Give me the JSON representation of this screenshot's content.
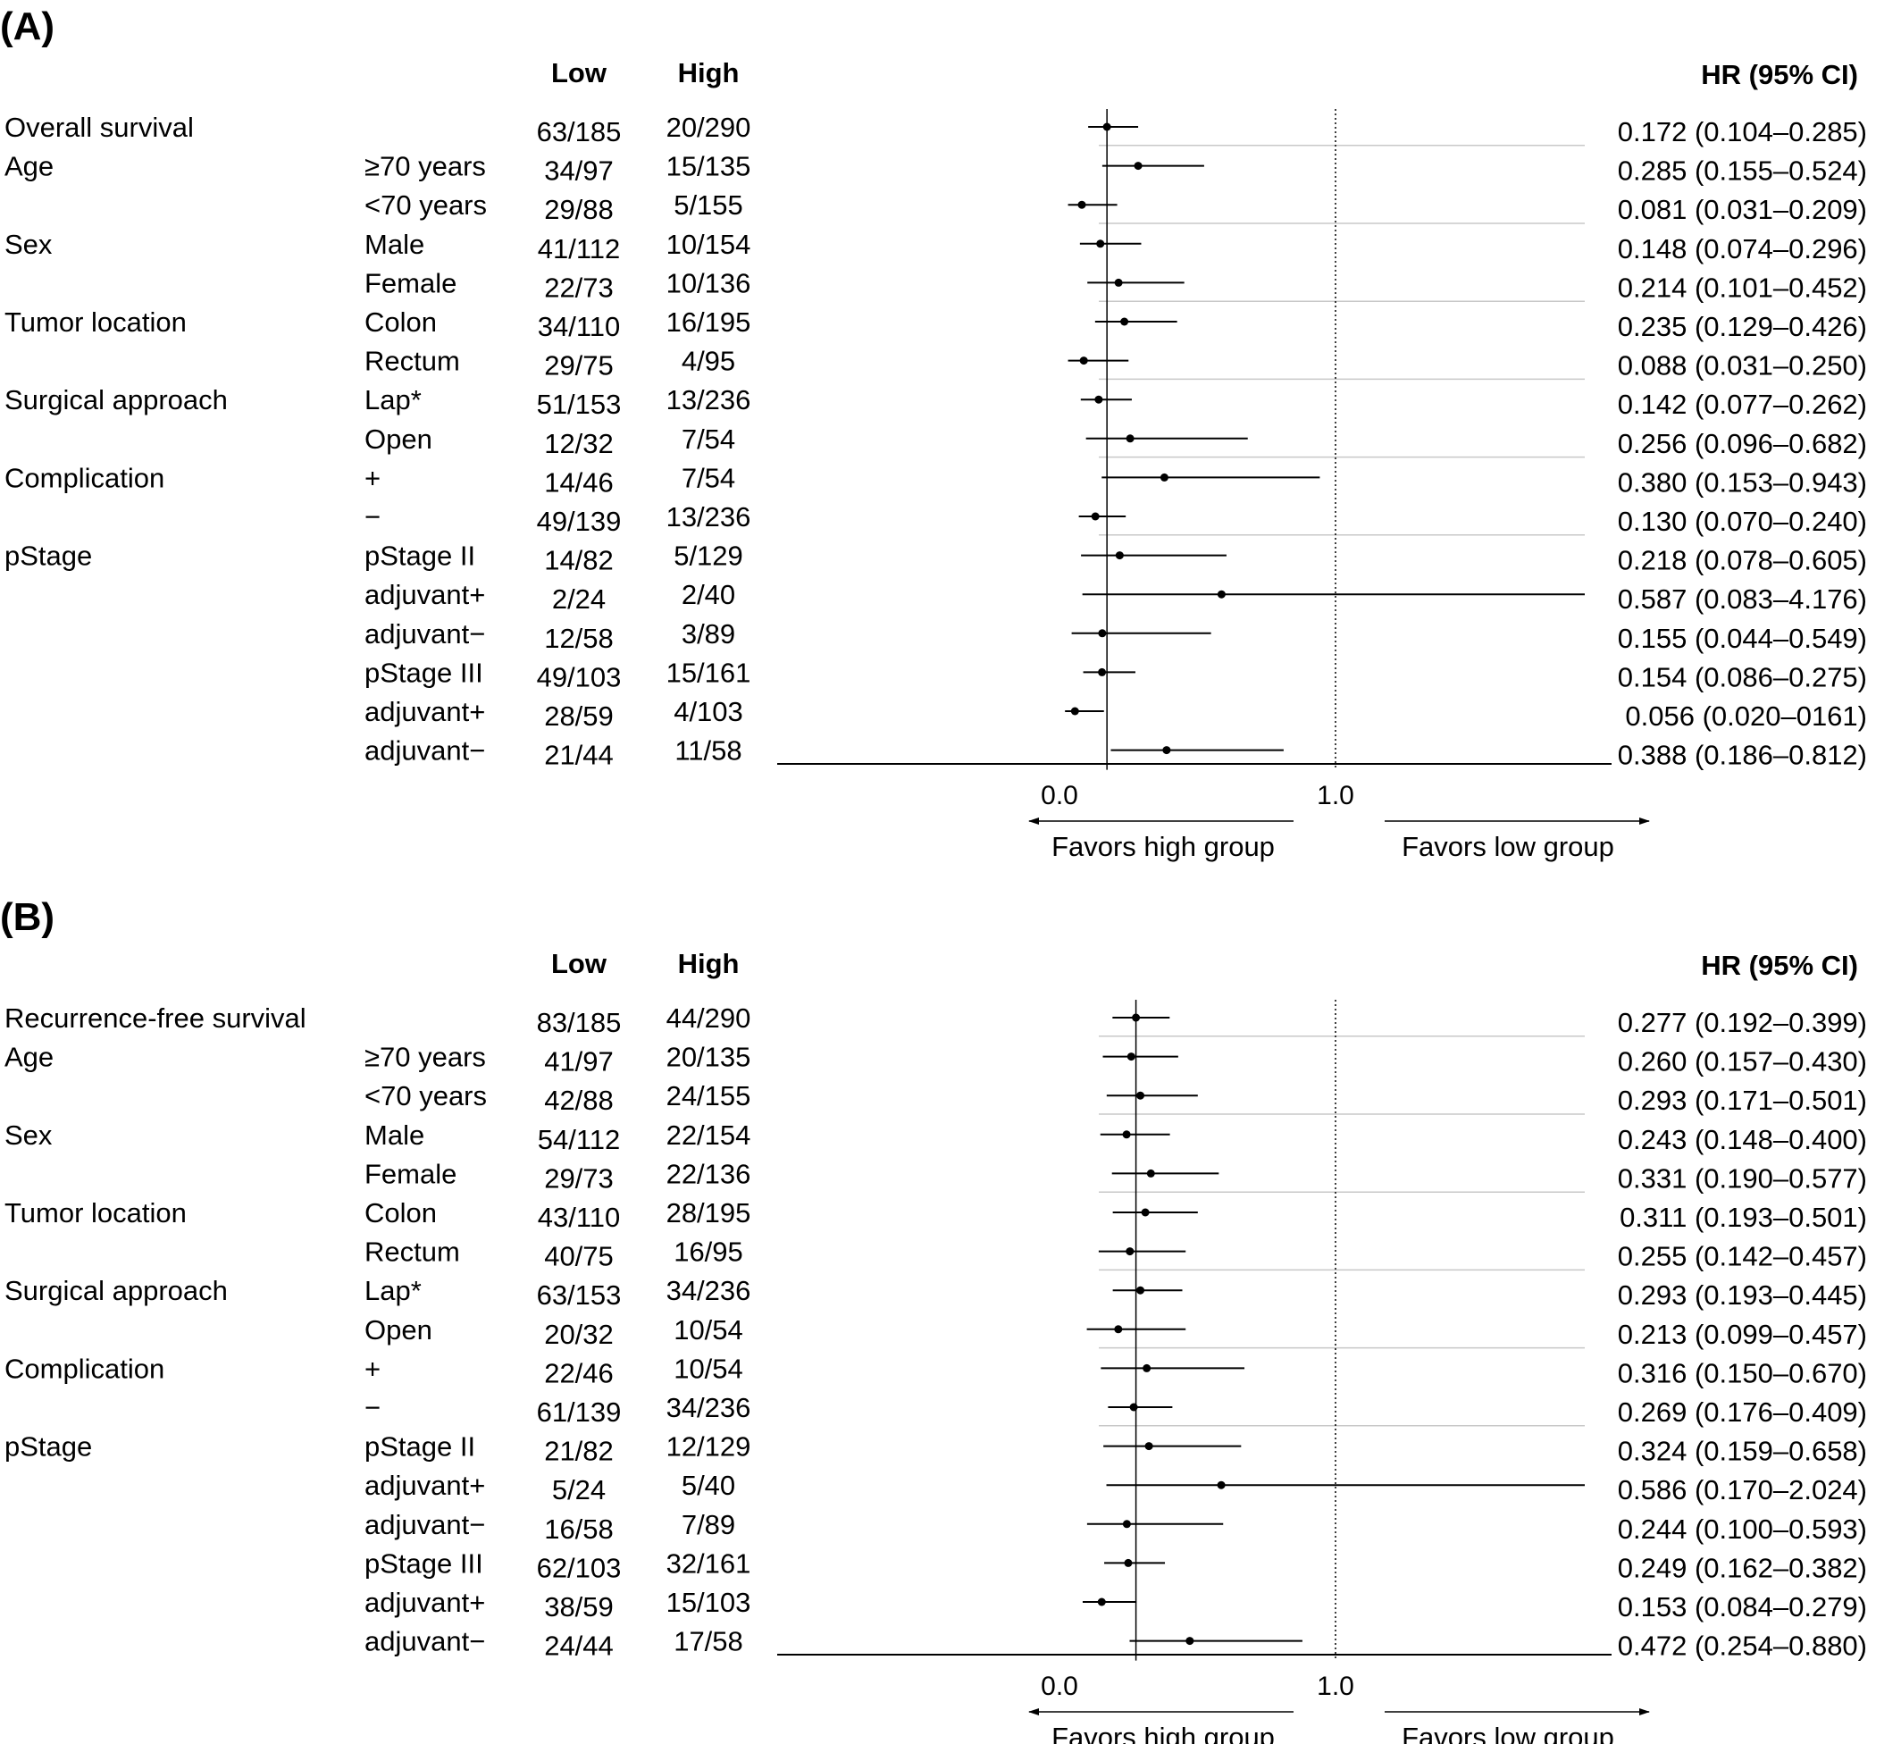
{
  "chart_data": [
    {
      "panel_label": "(A)",
      "type": "forest",
      "headers": {
        "low": "Low",
        "high": "High",
        "hr": "HR (95% CI)"
      },
      "overall": {
        "label": "Overall survival",
        "low": "63/185",
        "high": "20/290",
        "hr_text": "0.172 (0.104–0.285)",
        "hr": 0.172,
        "ci": [
          0.104,
          0.285
        ]
      },
      "groups": [
        {
          "label": "Age",
          "rows": [
            {
              "label": "≥70 years",
              "low": "34/97",
              "high": "15/135",
              "hr_text": "0.285 (0.155–0.524)",
              "hr": 0.285,
              "ci": [
                0.155,
                0.524
              ]
            },
            {
              "label": "<70 years",
              "low": "29/88",
              "high": "5/155",
              "hr_text": "0.081 (0.031–0.209)",
              "hr": 0.081,
              "ci": [
                0.031,
                0.209
              ]
            }
          ]
        },
        {
          "label": "Sex",
          "rows": [
            {
              "label": "Male",
              "low": "41/112",
              "high": "10/154",
              "hr_text": "0.148 (0.074–0.296)",
              "hr": 0.148,
              "ci": [
                0.074,
                0.296
              ]
            },
            {
              "label": "Female",
              "low": "22/73",
              "high": "10/136",
              "hr_text": "0.214 (0.101–0.452)",
              "hr": 0.214,
              "ci": [
                0.101,
                0.452
              ]
            }
          ]
        },
        {
          "label": "Tumor location",
          "rows": [
            {
              "label": "Colon",
              "low": "34/110",
              "high": "16/195",
              "hr_text": "0.235 (0.129–0.426)",
              "hr": 0.235,
              "ci": [
                0.129,
                0.426
              ]
            },
            {
              "label": "Rectum",
              "low": "29/75",
              "high": "4/95",
              "hr_text": "0.088 (0.031–0.250)",
              "hr": 0.088,
              "ci": [
                0.031,
                0.25
              ]
            }
          ]
        },
        {
          "label": "Surgical approach",
          "rows": [
            {
              "label": "Lap*",
              "low": "51/153",
              "high": "13/236",
              "hr_text": "0.142 (0.077–0.262)",
              "hr": 0.142,
              "ci": [
                0.077,
                0.262
              ]
            },
            {
              "label": "Open",
              "low": "12/32",
              "high": "7/54",
              "hr_text": "0.256 (0.096–0.682)",
              "hr": 0.256,
              "ci": [
                0.096,
                0.682
              ]
            }
          ]
        },
        {
          "label": "Complication",
          "rows": [
            {
              "label": "+",
              "low": "14/46",
              "high": "7/54",
              "hr_text": "0.380 (0.153–0.943)",
              "hr": 0.38,
              "ci": [
                0.153,
                0.943
              ]
            },
            {
              "label": "−",
              "low": "49/139",
              "high": "13/236",
              "hr_text": "0.130 (0.070–0.240)",
              "hr": 0.13,
              "ci": [
                0.07,
                0.24
              ]
            }
          ]
        },
        {
          "label": "pStage",
          "rows": [
            {
              "label": "pStage II",
              "low": "14/82",
              "high": "5/129",
              "hr_text": "0.218 (0.078–0.605)",
              "hr": 0.218,
              "ci": [
                0.078,
                0.605
              ]
            },
            {
              "label": "adjuvant+",
              "low": "2/24",
              "high": "2/40",
              "hr_text": "0.587 (0.083–4.176)",
              "hr": 0.587,
              "ci": [
                0.083,
                4.176
              ]
            },
            {
              "label": "adjuvant−",
              "low": "12/58",
              "high": "3/89",
              "hr_text": "0.155 (0.044–0.549)",
              "hr": 0.155,
              "ci": [
                0.044,
                0.549
              ]
            },
            {
              "label": "pStage III",
              "low": "49/103",
              "high": "15/161",
              "hr_text": "0.154 (0.086–0.275)",
              "hr": 0.154,
              "ci": [
                0.086,
                0.275
              ]
            },
            {
              "label": "adjuvant+",
              "low": "28/59",
              "high": "4/103",
              "hr_text": "0.056 (0.020–0161)",
              "hr": 0.056,
              "ci": [
                0.02,
                0.161
              ]
            },
            {
              "label": "adjuvant−",
              "low": "21/44",
              "high": "11/58",
              "hr_text": "0.388 (0.186–0.812)",
              "hr": 0.388,
              "ci": [
                0.186,
                0.812
              ]
            }
          ]
        }
      ],
      "x_ticks": [
        "0.0",
        "1.0"
      ],
      "reference_line": 1.0,
      "favors_left": "Favors high group",
      "favors_right": "Favors low group"
    },
    {
      "panel_label": "(B)",
      "type": "forest",
      "headers": {
        "low": "Low",
        "high": "High",
        "hr": "HR (95% CI)"
      },
      "overall": {
        "label": "Recurrence-free survival",
        "low": "83/185",
        "high": "44/290",
        "hr_text": "0.277 (0.192–0.399)",
        "hr": 0.277,
        "ci": [
          0.192,
          0.399
        ]
      },
      "groups": [
        {
          "label": "Age",
          "rows": [
            {
              "label": "≥70 years",
              "low": "41/97",
              "high": "20/135",
              "hr_text": "0.260 (0.157–0.430)",
              "hr": 0.26,
              "ci": [
                0.157,
                0.43
              ]
            },
            {
              "label": "<70 years",
              "low": "42/88",
              "high": "24/155",
              "hr_text": "0.293 (0.171–0.501)",
              "hr": 0.293,
              "ci": [
                0.171,
                0.501
              ]
            }
          ]
        },
        {
          "label": "Sex",
          "rows": [
            {
              "label": "Male",
              "low": "54/112",
              "high": "22/154",
              "hr_text": "0.243 (0.148–0.400)",
              "hr": 0.243,
              "ci": [
                0.148,
                0.4
              ]
            },
            {
              "label": "Female",
              "low": "29/73",
              "high": "22/136",
              "hr_text": "0.331 (0.190–0.577)",
              "hr": 0.331,
              "ci": [
                0.19,
                0.577
              ]
            }
          ]
        },
        {
          "label": "Tumor location",
          "rows": [
            {
              "label": "Colon",
              "low": "43/110",
              "high": "28/195",
              "hr_text": "0.311 (0.193–0.501)",
              "hr": 0.311,
              "ci": [
                0.193,
                0.501
              ]
            },
            {
              "label": "Rectum",
              "low": "40/75",
              "high": "16/95",
              "hr_text": "0.255 (0.142–0.457)",
              "hr": 0.255,
              "ci": [
                0.142,
                0.457
              ]
            }
          ]
        },
        {
          "label": "Surgical approach",
          "rows": [
            {
              "label": "Lap*",
              "low": "63/153",
              "high": "34/236",
              "hr_text": "0.293 (0.193–0.445)",
              "hr": 0.293,
              "ci": [
                0.193,
                0.445
              ]
            },
            {
              "label": "Open",
              "low": "20/32",
              "high": "10/54",
              "hr_text": "0.213 (0.099–0.457)",
              "hr": 0.213,
              "ci": [
                0.099,
                0.457
              ]
            }
          ]
        },
        {
          "label": "Complication",
          "rows": [
            {
              "label": "+",
              "low": "22/46",
              "high": "10/54",
              "hr_text": "0.316 (0.150–0.670)",
              "hr": 0.316,
              "ci": [
                0.15,
                0.67
              ]
            },
            {
              "label": "−",
              "low": "61/139",
              "high": "34/236",
              "hr_text": "0.269 (0.176–0.409)",
              "hr": 0.269,
              "ci": [
                0.176,
                0.409
              ]
            }
          ]
        },
        {
          "label": "pStage",
          "rows": [
            {
              "label": "pStage II",
              "low": "21/82",
              "high": "12/129",
              "hr_text": "0.324 (0.159–0.658)",
              "hr": 0.324,
              "ci": [
                0.159,
                0.658
              ]
            },
            {
              "label": "adjuvant+",
              "low": "5/24",
              "high": "5/40",
              "hr_text": "0.586 (0.170–2.024)",
              "hr": 0.586,
              "ci": [
                0.17,
                2.024
              ]
            },
            {
              "label": "adjuvant−",
              "low": "16/58",
              "high": "7/89",
              "hr_text": "0.244 (0.100–0.593)",
              "hr": 0.244,
              "ci": [
                0.1,
                0.593
              ]
            },
            {
              "label": "pStage III",
              "low": "62/103",
              "high": "32/161",
              "hr_text": "0.249 (0.162–0.382)",
              "hr": 0.249,
              "ci": [
                0.162,
                0.382
              ]
            },
            {
              "label": "adjuvant+",
              "low": "38/59",
              "high": "15/103",
              "hr_text": "0.153 (0.084–0.279)",
              "hr": 0.153,
              "ci": [
                0.084,
                0.279
              ]
            },
            {
              "label": "adjuvant−",
              "low": "24/44",
              "high": "17/58",
              "hr_text": "0.472 (0.254–0.880)",
              "hr": 0.472,
              "ci": [
                0.254,
                0.88
              ]
            }
          ]
        }
      ],
      "x_ticks": [
        "0.0",
        "1.0"
      ],
      "reference_line": 1.0,
      "favors_left": "Favors high group",
      "favors_right": "Favors low group"
    }
  ]
}
